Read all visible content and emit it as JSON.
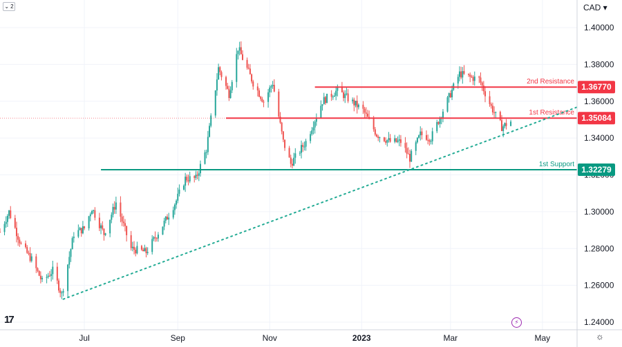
{
  "header": {
    "collapse_count": "2",
    "currency": "CAD"
  },
  "chart_data": {
    "type": "candlestick",
    "instrument_currency": "CAD",
    "ylim": [
      1.2383,
      1.4153
    ],
    "y_ticks": [
      "1.40000",
      "1.38000",
      "1.36000",
      "1.34000",
      "1.32000",
      "1.30000",
      "1.28000",
      "1.26000",
      "1.24000"
    ],
    "y_tick_values": [
      1.4,
      1.38,
      1.36,
      1.34,
      1.32,
      1.3,
      1.28,
      1.26,
      1.24
    ],
    "x_ticks": [
      {
        "label": "Jul",
        "date": "2022-07-01",
        "bold": false
      },
      {
        "label": "Sep",
        "date": "2022-09-01",
        "bold": false
      },
      {
        "label": "Nov",
        "date": "2022-11-01",
        "bold": false
      },
      {
        "label": "2023",
        "date": "2023-01-01",
        "bold": true
      },
      {
        "label": "Mar",
        "date": "2023-03-01",
        "bold": false
      },
      {
        "label": "May",
        "date": "2023-05-01",
        "bold": false
      }
    ],
    "x_range": [
      "2022-05-06",
      "2023-05-24"
    ],
    "colors": {
      "up": "#26a69a",
      "down": "#ef5350",
      "resistance": "#f23645",
      "support": "#089981",
      "trendline": "#22ab94"
    },
    "levels": [
      {
        "name": "2nd Resistance",
        "value": 1.3677,
        "tag": "1.36770",
        "color": "#f23645",
        "start_date": "2022-12-01"
      },
      {
        "name": "1st Resistance",
        "value": 1.35084,
        "tag": "1.35084",
        "color": "#f23645",
        "start_date": "2022-10-03"
      },
      {
        "name": "1st Support",
        "value": 1.32279,
        "tag": "1.32279",
        "color": "#089981",
        "start_date": "2022-07-12"
      }
    ],
    "trendline": {
      "style": "dotted",
      "start": {
        "date": "2022-06-17",
        "value": 1.2525
      },
      "end": {
        "date": "2023-05-25",
        "value": 1.3571
      }
    },
    "current_price": 1.35084,
    "anchors": [
      [
        "2022-05-06",
        1.289
      ],
      [
        "2022-05-12",
        1.3
      ],
      [
        "2022-05-20",
        1.282
      ],
      [
        "2022-05-27",
        1.274
      ],
      [
        "2022-06-03",
        1.262
      ],
      [
        "2022-06-10",
        1.268
      ],
      [
        "2022-06-16",
        1.255
      ],
      [
        "2022-06-24",
        1.288
      ],
      [
        "2022-07-01",
        1.291
      ],
      [
        "2022-07-06",
        1.302
      ],
      [
        "2022-07-14",
        1.288
      ],
      [
        "2022-07-22",
        1.305
      ],
      [
        "2022-08-01",
        1.28
      ],
      [
        "2022-08-11",
        1.278
      ],
      [
        "2022-08-23",
        1.294
      ],
      [
        "2022-08-31",
        1.306
      ],
      [
        "2022-09-06",
        1.318
      ],
      [
        "2022-09-13",
        1.318
      ],
      [
        "2022-09-20",
        1.334
      ],
      [
        "2022-09-28",
        1.378
      ],
      [
        "2022-10-05",
        1.364
      ],
      [
        "2022-10-11",
        1.389
      ],
      [
        "2022-10-21",
        1.37
      ],
      [
        "2022-10-28",
        1.36
      ],
      [
        "2022-11-03",
        1.37
      ],
      [
        "2022-11-10",
        1.338
      ],
      [
        "2022-11-15",
        1.326
      ],
      [
        "2022-11-25",
        1.338
      ],
      [
        "2022-12-06",
        1.36
      ],
      [
        "2022-12-16",
        1.366
      ],
      [
        "2023-01-02",
        1.355
      ],
      [
        "2023-01-11",
        1.342
      ],
      [
        "2023-01-20",
        1.338
      ],
      [
        "2023-01-27",
        1.338
      ],
      [
        "2023-02-02",
        1.329
      ],
      [
        "2023-02-09",
        1.342
      ],
      [
        "2023-02-16",
        1.34
      ],
      [
        "2023-02-24",
        1.355
      ],
      [
        "2023-03-07",
        1.375
      ],
      [
        "2023-03-14",
        1.373
      ],
      [
        "2023-03-20",
        1.372
      ],
      [
        "2023-03-28",
        1.357
      ],
      [
        "2023-04-04",
        1.346
      ],
      [
        "2023-04-10",
        1.349
      ]
    ]
  }
}
